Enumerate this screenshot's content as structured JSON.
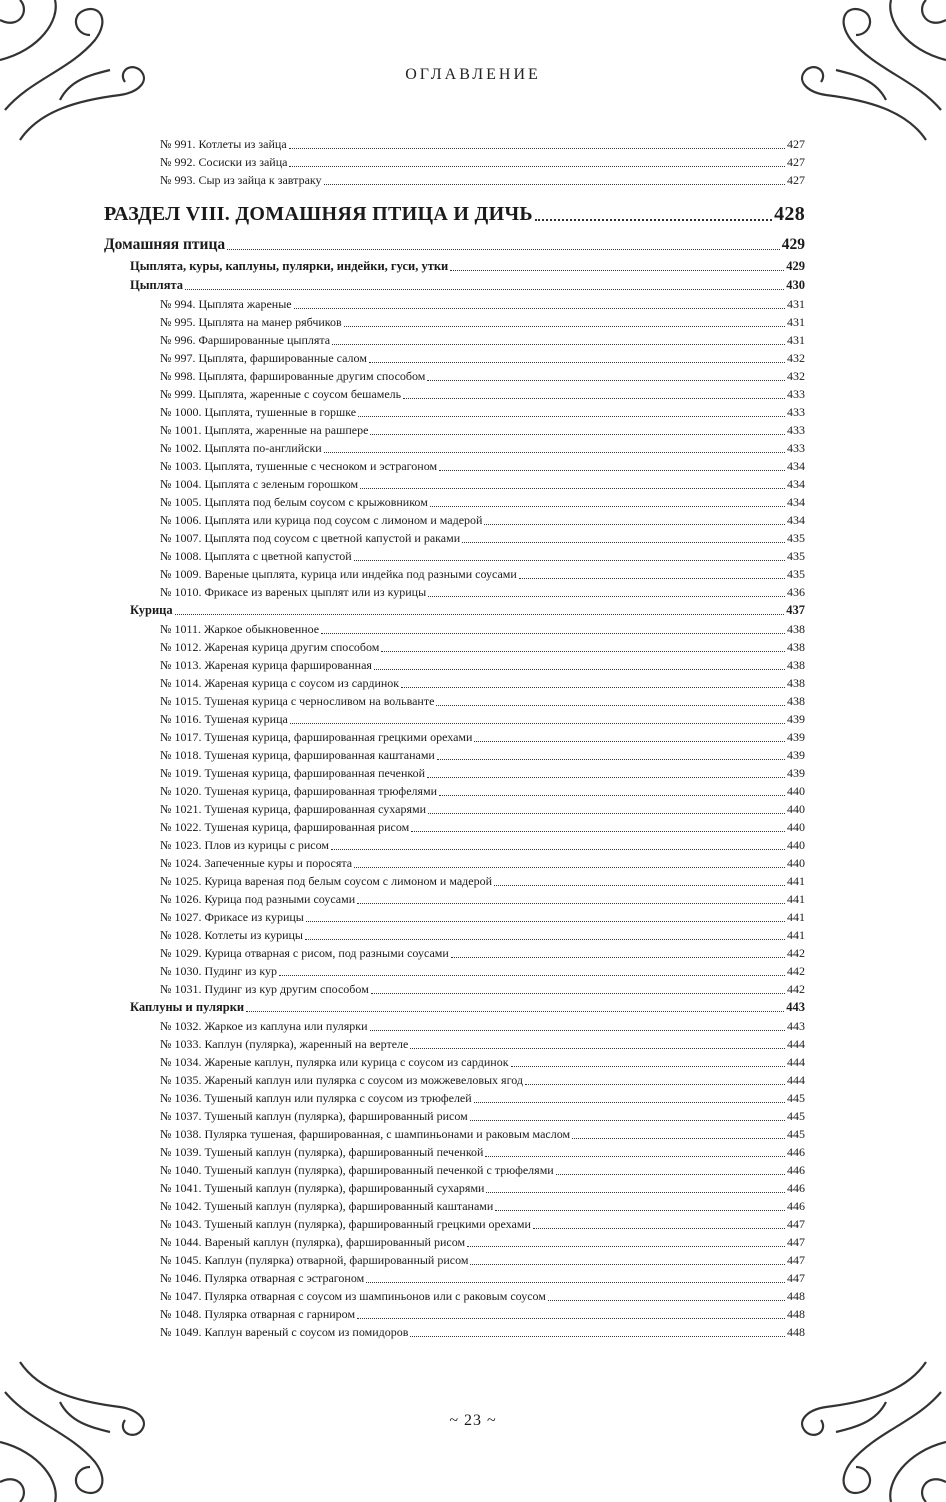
{
  "header": {
    "title": "ОГЛАВЛЕНИЕ"
  },
  "footer": {
    "page_number": "~ 23 ~"
  },
  "entries": [
    {
      "level": "l3",
      "title": "№ 991. Котлеты из зайца",
      "page": "427"
    },
    {
      "level": "l3",
      "title": "№ 992. Сосиски из зайца",
      "page": "427"
    },
    {
      "level": "l3",
      "title": "№ 993. Сыр из зайца к завтраку",
      "page": "427"
    },
    {
      "level": "sec",
      "title": "РАЗДЕЛ VIII. ДОМАШНЯЯ ПТИЦА И ДИЧЬ",
      "page": "428"
    },
    {
      "level": "l1",
      "title": "Домашняя птица",
      "page": "429"
    },
    {
      "level": "l2",
      "title": "Цыплята, куры, каплуны, пулярки, индейки, гуси, утки",
      "page": "429"
    },
    {
      "level": "l2",
      "title": "Цыплята",
      "page": "430"
    },
    {
      "level": "l3",
      "title": "№ 994. Цыплята жареные",
      "page": "431"
    },
    {
      "level": "l3",
      "title": "№ 995. Цыплята на манер рябчиков",
      "page": "431"
    },
    {
      "level": "l3",
      "title": "№ 996. Фаршированные цыплята",
      "page": "431"
    },
    {
      "level": "l3",
      "title": "№ 997. Цыплята, фаршированные салом",
      "page": "432"
    },
    {
      "level": "l3",
      "title": "№ 998. Цыплята, фаршированные другим способом",
      "page": "432"
    },
    {
      "level": "l3",
      "title": "№ 999. Цыплята, жаренные с соусом бешамель",
      "page": "433"
    },
    {
      "level": "l3",
      "title": "№ 1000. Цыплята, тушенные в горшке",
      "page": "433"
    },
    {
      "level": "l3",
      "title": "№ 1001. Цыплята, жаренные на рашпере",
      "page": "433"
    },
    {
      "level": "l3",
      "title": "№ 1002. Цыплята по-английски",
      "page": "433"
    },
    {
      "level": "l3",
      "title": "№ 1003. Цыплята, тушенные с чесноком и эстрагоном",
      "page": "434"
    },
    {
      "level": "l3",
      "title": "№ 1004. Цыплята с зеленым горошком",
      "page": "434"
    },
    {
      "level": "l3",
      "title": "№ 1005. Цыплята под белым соусом с крыжовником",
      "page": "434"
    },
    {
      "level": "l3",
      "title": "№ 1006. Цыплята или курица под соусом с лимоном и мадерой",
      "page": "434"
    },
    {
      "level": "l3",
      "title": "№ 1007. Цыплята под соусом с цветной капустой и раками",
      "page": "435"
    },
    {
      "level": "l3",
      "title": "№ 1008. Цыплята с цветной капустой",
      "page": "435"
    },
    {
      "level": "l3",
      "title": "№ 1009. Вареные цыплята, курица или индейка под разными соусами",
      "page": "435"
    },
    {
      "level": "l3",
      "title": "№ 1010. Фрикасе из вареных цыплят или из курицы",
      "page": "436"
    },
    {
      "level": "l2",
      "title": "Курица",
      "page": "437"
    },
    {
      "level": "l3",
      "title": "№ 1011. Жаркое обыкновенное",
      "page": "438"
    },
    {
      "level": "l3",
      "title": "№ 1012. Жареная курица другим способом",
      "page": "438"
    },
    {
      "level": "l3",
      "title": "№ 1013. Жареная курица фаршированная",
      "page": "438"
    },
    {
      "level": "l3",
      "title": "№ 1014. Жареная курица с соусом из сардинок",
      "page": "438"
    },
    {
      "level": "l3",
      "title": "№ 1015. Тушеная курица с черносливом на вольванте",
      "page": "438"
    },
    {
      "level": "l3",
      "title": "№ 1016. Тушеная курица",
      "page": "439"
    },
    {
      "level": "l3",
      "title": "№ 1017. Тушеная курица, фаршированная грецкими орехами",
      "page": "439"
    },
    {
      "level": "l3",
      "title": "№ 1018. Тушеная курица, фаршированная каштанами",
      "page": "439"
    },
    {
      "level": "l3",
      "title": "№ 1019. Тушеная курица, фаршированная печенкой",
      "page": "439"
    },
    {
      "level": "l3",
      "title": "№ 1020. Тушеная курица, фаршированная трюфелями",
      "page": "440"
    },
    {
      "level": "l3",
      "title": "№ 1021. Тушеная курица, фаршированная сухарями",
      "page": "440"
    },
    {
      "level": "l3",
      "title": "№ 1022. Тушеная курица, фаршированная рисом",
      "page": "440"
    },
    {
      "level": "l3",
      "title": "№ 1023. Плов из курицы с рисом",
      "page": "440"
    },
    {
      "level": "l3",
      "title": "№ 1024. Запеченные куры и поросята",
      "page": "440"
    },
    {
      "level": "l3",
      "title": "№ 1025. Курица вареная под белым соусом с лимоном и мадерой",
      "page": "441"
    },
    {
      "level": "l3",
      "title": "№ 1026. Курица под разными соусами",
      "page": "441"
    },
    {
      "level": "l3",
      "title": "№ 1027. Фрикасе из курицы",
      "page": "441"
    },
    {
      "level": "l3",
      "title": "№ 1028. Котлеты из курицы",
      "page": "441"
    },
    {
      "level": "l3",
      "title": "№ 1029. Курица отварная с рисом, под разными соусами",
      "page": "442"
    },
    {
      "level": "l3",
      "title": "№ 1030. Пудинг из кур",
      "page": "442"
    },
    {
      "level": "l3",
      "title": "№ 1031. Пудинг из кур другим способом",
      "page": "442"
    },
    {
      "level": "l2",
      "title": "Каплуны и пулярки",
      "page": "443"
    },
    {
      "level": "l3",
      "title": "№ 1032. Жаркое из каплуна или пулярки",
      "page": "443"
    },
    {
      "level": "l3",
      "title": "№ 1033. Каплун (пулярка), жаренный на вертеле",
      "page": "444"
    },
    {
      "level": "l3",
      "title": "№ 1034. Жареные каплун, пулярка или курица с соусом из сардинок",
      "page": "444"
    },
    {
      "level": "l3",
      "title": "№ 1035. Жареный каплун или пулярка с соусом из можжевеловых ягод",
      "page": "444"
    },
    {
      "level": "l3",
      "title": "№ 1036. Тушеный каплун или пулярка с соусом из трюфелей",
      "page": "445"
    },
    {
      "level": "l3",
      "title": "№ 1037. Тушеный каплун (пулярка), фаршированный рисом",
      "page": "445"
    },
    {
      "level": "l3",
      "title": "№ 1038. Пулярка тушеная, фаршированная, с шампиньонами и раковым маслом",
      "page": "445"
    },
    {
      "level": "l3",
      "title": "№ 1039. Тушеный каплун (пулярка), фаршированный печенкой",
      "page": "446"
    },
    {
      "level": "l3",
      "title": "№ 1040. Тушеный каплун (пулярка), фаршированный печенкой с трюфелями",
      "page": "446"
    },
    {
      "level": "l3",
      "title": "№ 1041. Тушеный каплун (пулярка), фаршированный сухарями",
      "page": "446"
    },
    {
      "level": "l3",
      "title": "№ 1042. Тушеный каплун (пулярка), фаршированный каштанами",
      "page": "446"
    },
    {
      "level": "l3",
      "title": "№ 1043. Тушеный каплун (пулярка), фаршированный грецкими орехами",
      "page": "447"
    },
    {
      "level": "l3",
      "title": "№ 1044. Вареный каплун (пулярка), фаршированный рисом",
      "page": "447"
    },
    {
      "level": "l3",
      "title": "№ 1045. Каплун (пулярка) отварной, фаршированный рисом",
      "page": "447"
    },
    {
      "level": "l3",
      "title": "№ 1046. Пулярка отварная с эстрагоном",
      "page": "447"
    },
    {
      "level": "l3",
      "title": "№ 1047. Пулярка отварная с соусом из шампиньонов или с раковым соусом",
      "page": "448"
    },
    {
      "level": "l3",
      "title": "№ 1048. Пулярка отварная с гарниром",
      "page": "448"
    },
    {
      "level": "l3",
      "title": "№ 1049. Каплун вареный с соусом из помидоров",
      "page": "448"
    }
  ]
}
